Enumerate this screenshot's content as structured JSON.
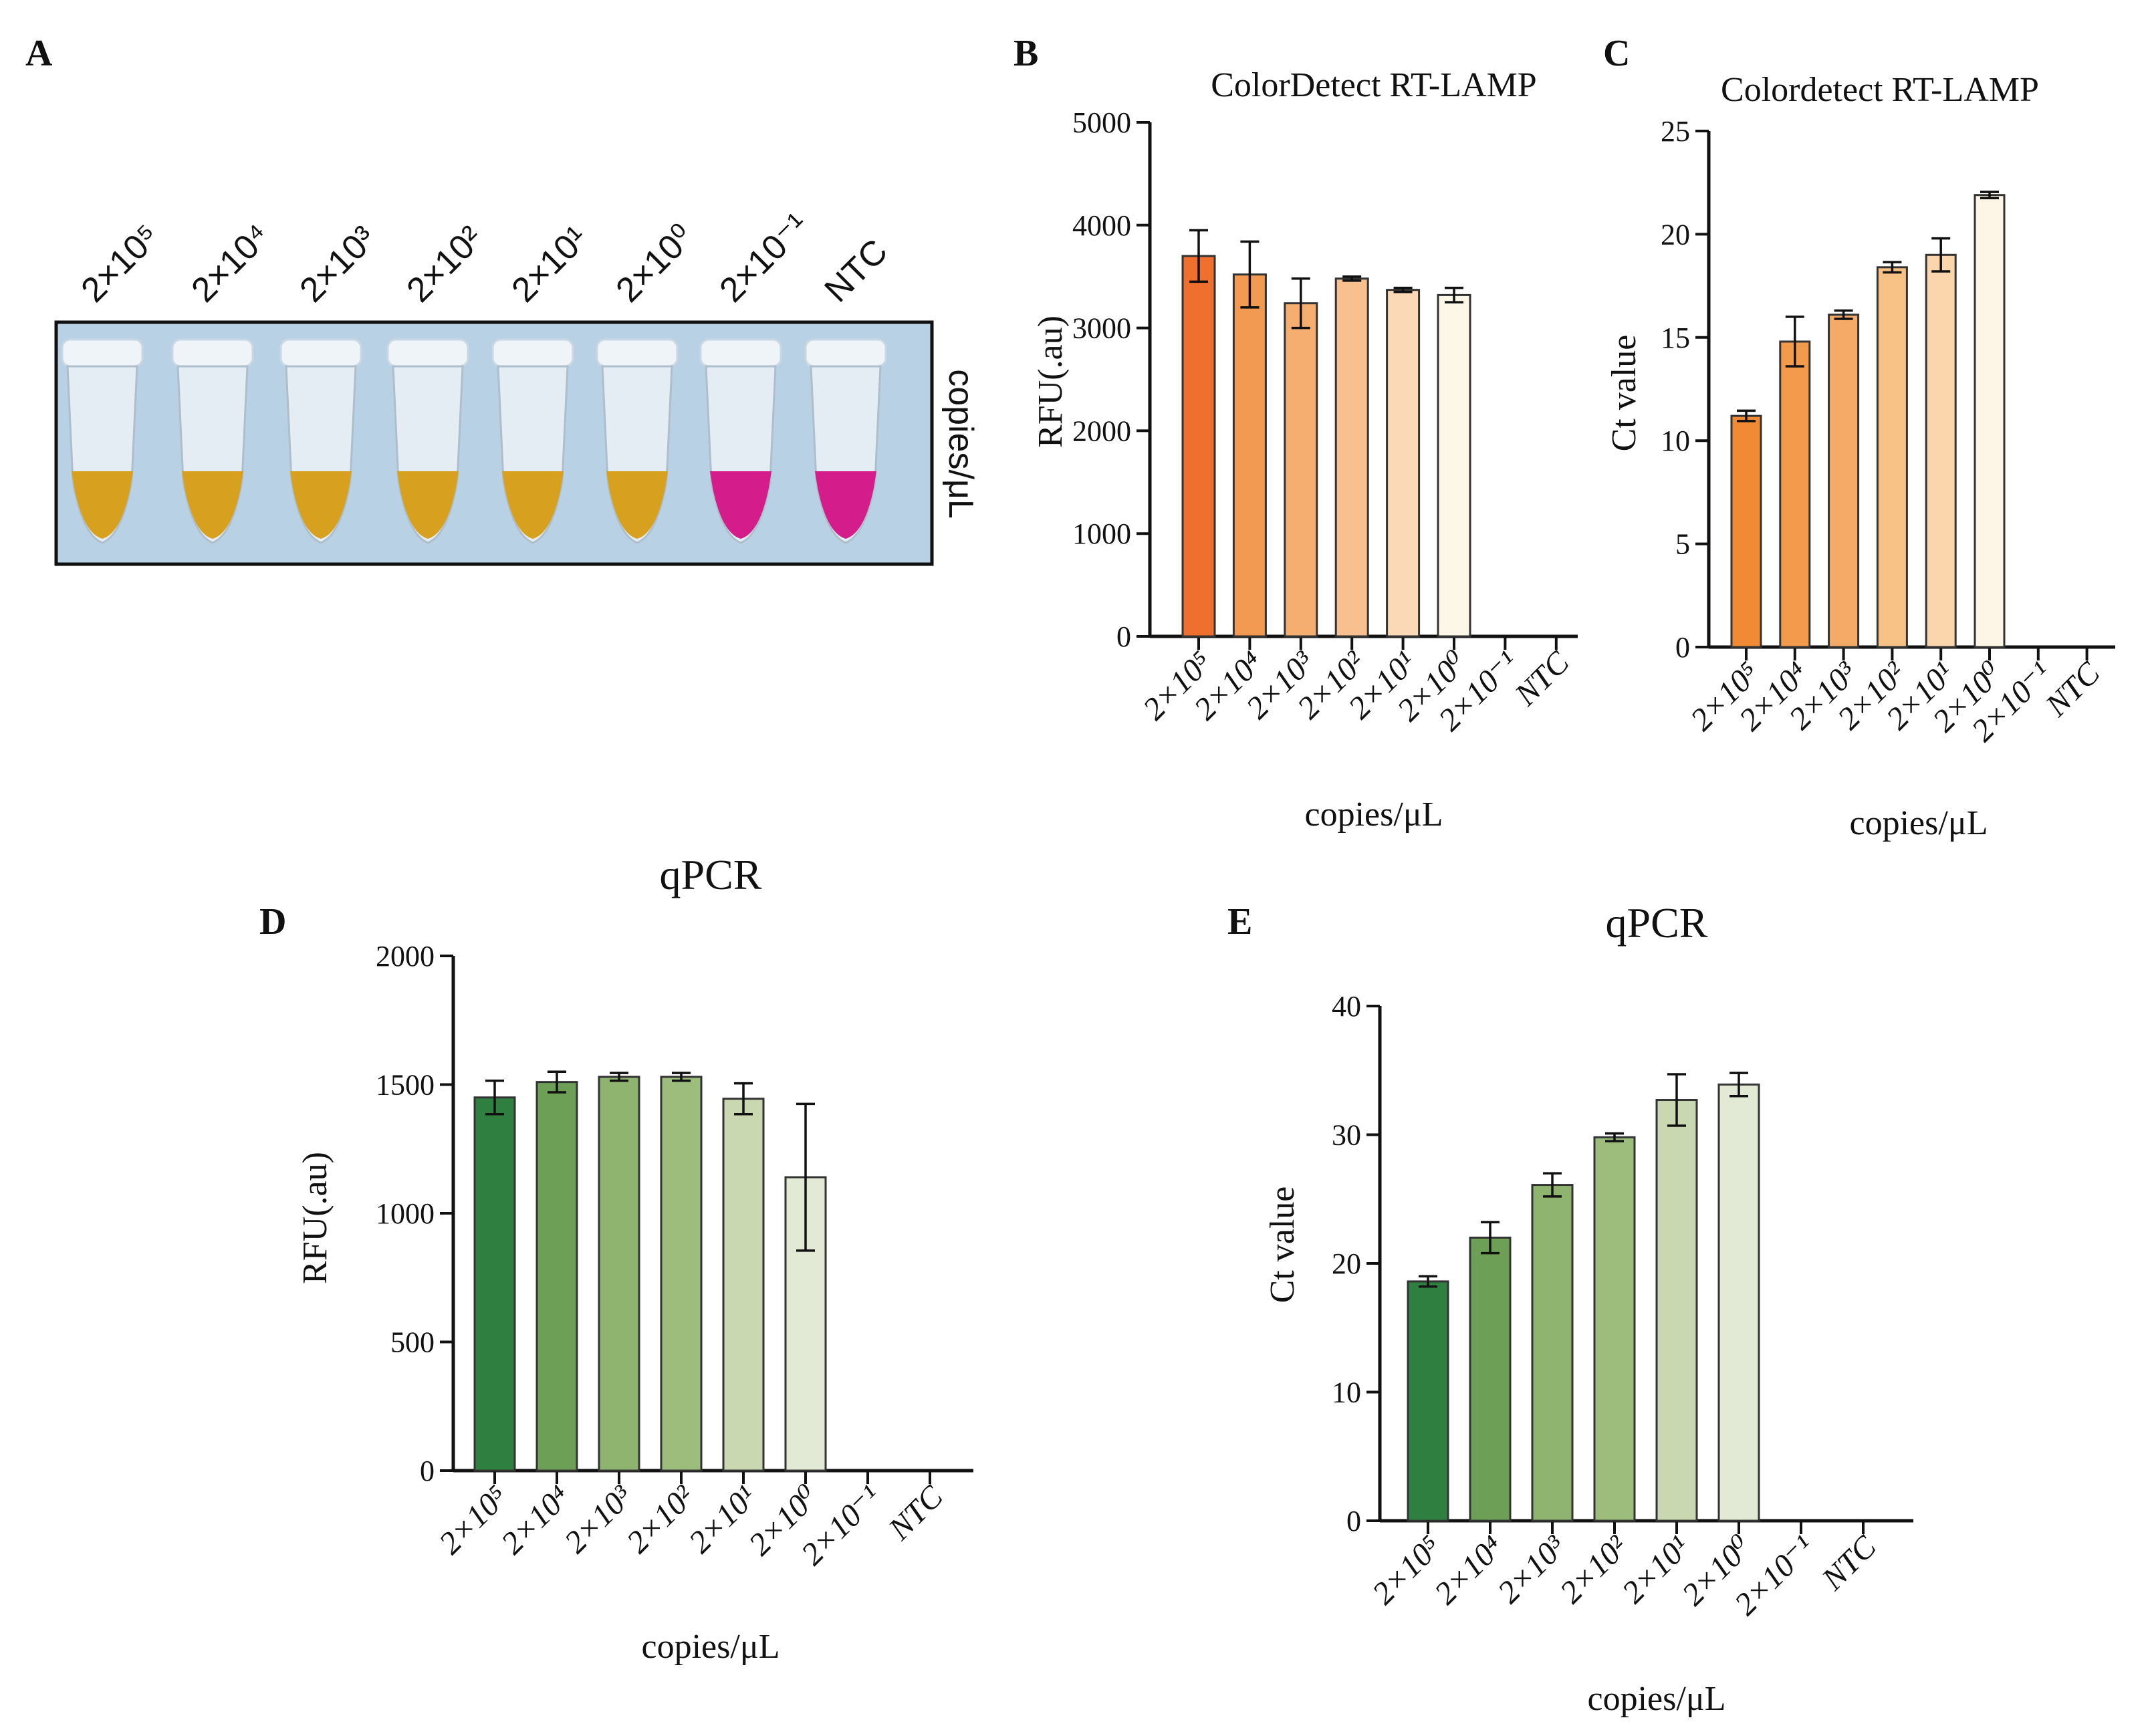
{
  "panels": {
    "A": {
      "label": "A",
      "tube_labels": [
        "2×10⁵",
        "2×10⁴",
        "2×10³",
        "2×10²",
        "2×10¹",
        "2×10⁰",
        "2×10⁻¹",
        "NTC"
      ],
      "tube_colors": [
        "#d7a11f",
        "#d7a11f",
        "#d7a11f",
        "#d7a11f",
        "#d7a11f",
        "#d7a11f",
        "#d41c8a",
        "#d41c8a"
      ],
      "side_label": "copies/μL"
    }
  },
  "chart_data": [
    {
      "panel": "B",
      "type": "bar",
      "title": "ColorDetect RT-LAMP",
      "xlabel": "copies/μL",
      "ylabel": "RFU(.au)",
      "ylim": [
        0,
        5000
      ],
      "yticks": [
        0,
        1000,
        2000,
        3000,
        4000,
        5000
      ],
      "categories": [
        "2×10⁵",
        "2×10⁴",
        "2×10³",
        "2×10²",
        "2×10¹",
        "2×10⁰",
        "2×10⁻¹",
        "NTC"
      ],
      "values": [
        3700,
        3520,
        3240,
        3480,
        3370,
        3320,
        null,
        null
      ],
      "errors": [
        250,
        320,
        240,
        20,
        20,
        70,
        null,
        null
      ],
      "colors": [
        "#ef6f2e",
        "#f39a52",
        "#f5ad70",
        "#f8c08e",
        "#fbd9b7",
        "#fdf7e8",
        null,
        null
      ]
    },
    {
      "panel": "C",
      "type": "bar",
      "title": "Colordetect RT-LAMP",
      "xlabel": "copies/μL",
      "ylabel": "Ct value",
      "ylim": [
        0,
        25
      ],
      "yticks": [
        0,
        5,
        10,
        15,
        20,
        25
      ],
      "categories": [
        "2×10⁵",
        "2×10⁴",
        "2×10³",
        "2×10²",
        "2×10¹",
        "2×10⁰",
        "2×10⁻¹",
        "NTC"
      ],
      "values": [
        11.2,
        14.8,
        16.1,
        18.4,
        19.0,
        21.9,
        null,
        null
      ],
      "errors": [
        0.25,
        1.2,
        0.2,
        0.25,
        0.8,
        0.15,
        null,
        null
      ],
      "colors": [
        "#f08a35",
        "#f39a4c",
        "#f5ab68",
        "#f8c186",
        "#fbd6ad",
        "#fdf5e6",
        null,
        null
      ]
    },
    {
      "panel": "D",
      "type": "bar",
      "title": "qPCR",
      "xlabel": "copies/μL",
      "ylabel": "RFU(.au)",
      "ylim": [
        0,
        2000
      ],
      "yticks": [
        0,
        500,
        1000,
        1500,
        2000
      ],
      "categories": [
        "2×10⁵",
        "2×10⁴",
        "2×10³",
        "2×10²",
        "2×10¹",
        "2×10⁰",
        "2×10⁻¹",
        "NTC"
      ],
      "values": [
        1450,
        1510,
        1530,
        1530,
        1445,
        1140,
        null,
        null
      ],
      "errors": [
        65,
        40,
        15,
        15,
        60,
        285,
        null,
        null
      ],
      "colors": [
        "#2f8040",
        "#6e9f57",
        "#8eb46f",
        "#9dbd7d",
        "#c9d8b1",
        "#e2ead5",
        null,
        null
      ]
    },
    {
      "panel": "E",
      "type": "bar",
      "title": "qPCR",
      "xlabel": "copies/μL",
      "ylabel": "Ct value",
      "ylim": [
        0,
        40
      ],
      "yticks": [
        0,
        10,
        20,
        30,
        40
      ],
      "categories": [
        "2×10⁵",
        "2×10⁴",
        "2×10³",
        "2×10²",
        "2×10¹",
        "2×10⁰",
        "2×10⁻¹",
        "NTC"
      ],
      "values": [
        18.6,
        22.0,
        26.1,
        29.8,
        32.7,
        33.9,
        null,
        null
      ],
      "errors": [
        0.4,
        1.2,
        0.9,
        0.3,
        2.0,
        0.9,
        null,
        null
      ],
      "colors": [
        "#2f8040",
        "#6e9f57",
        "#8eb46f",
        "#9dbd7d",
        "#c9d8b1",
        "#e2ead5",
        null,
        null
      ]
    }
  ]
}
